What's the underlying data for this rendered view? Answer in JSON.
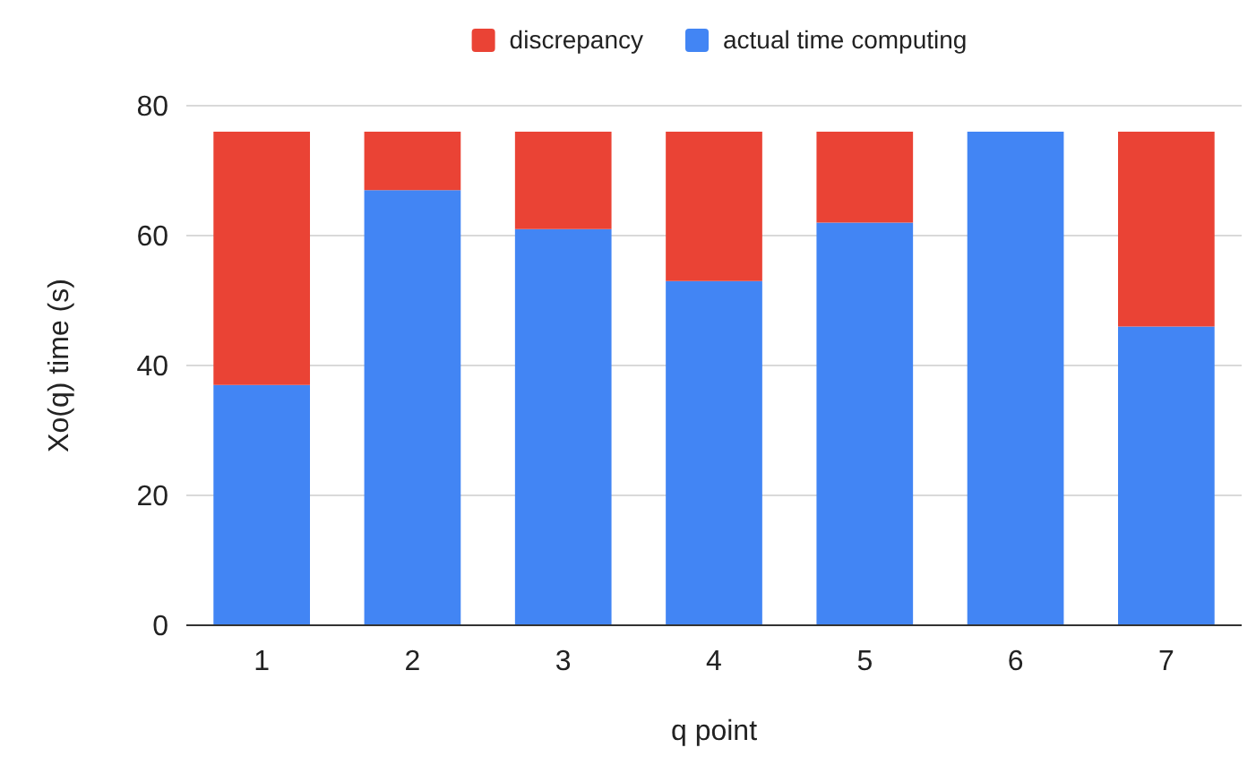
{
  "chart_data": {
    "type": "bar",
    "xlabel": "q point",
    "ylabel": "Xo(q) time (s)",
    "categories": [
      "1",
      "2",
      "3",
      "4",
      "5",
      "6",
      "7"
    ],
    "stacked": true,
    "ylim": [
      0,
      80
    ],
    "yticks": [
      0,
      20,
      40,
      60,
      80
    ],
    "grid": "y",
    "legend": "top",
    "series": [
      {
        "name": "actual time computing",
        "color": "#4285f4",
        "values": [
          37,
          67,
          61,
          53,
          62,
          76,
          46
        ]
      },
      {
        "name": "discrepancy",
        "color": "#ea4335",
        "values": [
          39,
          9,
          15,
          23,
          14,
          0,
          30
        ]
      }
    ]
  }
}
